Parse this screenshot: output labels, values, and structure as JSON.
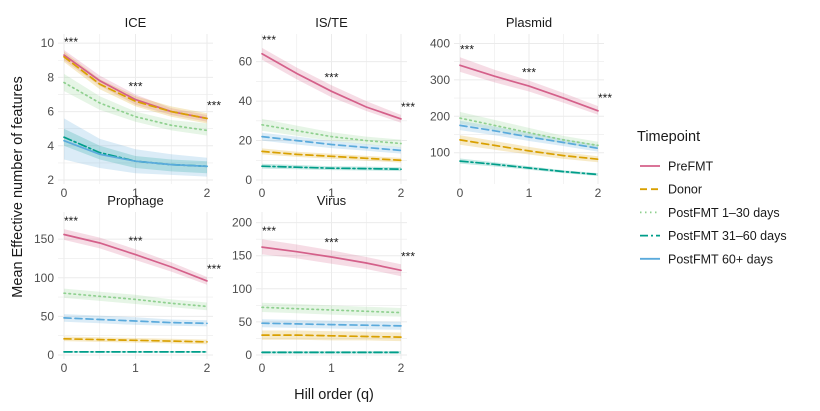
{
  "figure": {
    "ylabel": "Mean Effective number of features",
    "xlabel": "Hill order (q)"
  },
  "legend": {
    "title": "Timepoint",
    "entries": [
      "PreFMT",
      "Donor",
      "PostFMT 1–30 days",
      "PostFMT 31–60 days",
      "PostFMT 60+ days"
    ],
    "placement": "right"
  },
  "colors": {
    "PreFMT": "#d4608a",
    "Donor": "#d9a000",
    "PostFMT 1–30 days": "#8fd08f",
    "PostFMT 31–60 days": "#009e8a",
    "PostFMT 60+ days": "#5aaadc",
    "gridline": "#ebebeb",
    "axis_text": "#4d4d4d"
  },
  "chart_data": [
    {
      "type": "line",
      "title": "ICE",
      "x_ticks": [
        0,
        1,
        2
      ],
      "y_ticks": [
        2,
        4,
        6,
        8,
        10
      ],
      "ylim": [
        2,
        10.3
      ],
      "significance": [
        "***",
        "***",
        "***"
      ],
      "x": [
        0,
        0.5,
        1,
        1.5,
        2
      ],
      "series": [
        {
          "name": "PreFMT",
          "values": [
            9.3,
            7.8,
            6.7,
            6.0,
            5.6
          ],
          "lower": [
            9.0,
            7.5,
            6.4,
            5.8,
            5.4
          ],
          "upper": [
            9.6,
            8.1,
            7.0,
            6.2,
            5.8
          ],
          "dash": ""
        },
        {
          "name": "Donor",
          "values": [
            9.2,
            7.6,
            6.6,
            6.0,
            5.6
          ],
          "lower": [
            8.9,
            7.3,
            6.3,
            5.7,
            5.3
          ],
          "upper": [
            9.5,
            7.9,
            6.9,
            6.3,
            5.9
          ],
          "dash": "7,4"
        },
        {
          "name": "PostFMT 1–30 days",
          "values": [
            7.7,
            6.5,
            5.7,
            5.2,
            4.9
          ],
          "lower": [
            7.2,
            6.1,
            5.4,
            4.9,
            4.6
          ],
          "upper": [
            8.2,
            6.9,
            6.0,
            5.5,
            5.3
          ],
          "dash": "1.5,3.5"
        },
        {
          "name": "PostFMT 31–60 days",
          "values": [
            4.5,
            3.6,
            3.1,
            2.9,
            2.8
          ],
          "lower": [
            4.0,
            3.2,
            2.7,
            2.5,
            2.4
          ],
          "upper": [
            5.0,
            4.0,
            3.4,
            3.2,
            3.1
          ],
          "dash": "8,3,2,3"
        },
        {
          "name": "PostFMT 60+ days",
          "values": [
            4.3,
            3.5,
            3.1,
            2.9,
            2.8
          ],
          "lower": [
            3.2,
            2.7,
            2.4,
            2.3,
            2.2
          ],
          "upper": [
            5.6,
            4.4,
            3.8,
            3.5,
            3.3
          ],
          "dash": ""
        }
      ]
    },
    {
      "type": "line",
      "title": "IS/TE",
      "x_ticks": [
        0,
        1,
        2
      ],
      "y_ticks": [
        0,
        20,
        40,
        60
      ],
      "ylim": [
        0,
        72
      ],
      "significance": [
        "***",
        "***",
        "***"
      ],
      "x": [
        0,
        0.5,
        1,
        1.5,
        2
      ],
      "series": [
        {
          "name": "PreFMT",
          "values": [
            64,
            54,
            45,
            37,
            31
          ],
          "lower": [
            61,
            51,
            42,
            35,
            29
          ],
          "upper": [
            67,
            57,
            48,
            40,
            33
          ],
          "dash": ""
        },
        {
          "name": "Donor",
          "values": [
            14.5,
            13,
            12,
            11,
            10
          ],
          "lower": [
            13,
            11.7,
            10.7,
            9.8,
            8.8
          ],
          "upper": [
            16,
            14.3,
            13.3,
            12.2,
            11.2
          ],
          "dash": "7,4"
        },
        {
          "name": "PostFMT 1–30 days",
          "values": [
            28,
            25,
            22,
            20,
            18.5
          ],
          "lower": [
            25,
            22.4,
            19.8,
            18,
            16.5
          ],
          "upper": [
            31,
            27.6,
            24.2,
            22,
            20.5
          ],
          "dash": "1.5,3.5"
        },
        {
          "name": "PostFMT 31–60 days",
          "values": [
            7,
            6.5,
            6,
            5.8,
            5.5
          ],
          "lower": [
            5.8,
            5.4,
            5,
            4.8,
            4.5
          ],
          "upper": [
            8.2,
            7.6,
            7,
            6.8,
            6.5
          ],
          "dash": "8,3,2,3"
        },
        {
          "name": "PostFMT 60+ days",
          "values": [
            22,
            20,
            18,
            16.5,
            15
          ],
          "lower": [
            20,
            18,
            16.2,
            14.8,
            13.4
          ],
          "upper": [
            24,
            22,
            19.8,
            18.2,
            16.6
          ],
          "dash": "7,4"
        }
      ]
    },
    {
      "type": "line",
      "title": "Plasmid",
      "x_ticks": [
        0,
        1,
        2
      ],
      "y_ticks": [
        100,
        200,
        300,
        400
      ],
      "ylim": [
        25,
        415
      ],
      "significance": [
        "***",
        "***",
        "***"
      ],
      "x": [
        0,
        0.5,
        1,
        1.5,
        2
      ],
      "series": [
        {
          "name": "PreFMT",
          "values": [
            340,
            310,
            283,
            250,
            215
          ],
          "lower": [
            322,
            293,
            268,
            237,
            204
          ],
          "upper": [
            362,
            328,
            298,
            264,
            228
          ],
          "dash": ""
        },
        {
          "name": "Donor",
          "values": [
            135,
            120,
            105,
            92,
            82
          ],
          "lower": [
            122,
            108,
            95,
            83,
            74
          ],
          "upper": [
            148,
            132,
            116,
            101,
            90
          ],
          "dash": "7,4"
        },
        {
          "name": "PostFMT 1–30 days",
          "values": [
            195,
            175,
            155,
            135,
            120
          ],
          "lower": [
            180,
            162,
            143,
            125,
            111
          ],
          "upper": [
            212,
            190,
            168,
            146,
            130
          ],
          "dash": "1.5,3.5"
        },
        {
          "name": "PostFMT 31–60 days",
          "values": [
            77,
            68,
            58,
            48,
            40
          ],
          "lower": [
            70,
            62,
            53,
            44,
            36
          ],
          "upper": [
            84,
            74,
            63,
            52,
            44
          ],
          "dash": "8,3,2,3"
        },
        {
          "name": "PostFMT 60+ days",
          "values": [
            175,
            160,
            143,
            128,
            112
          ],
          "lower": [
            162,
            148,
            132,
            118,
            103
          ],
          "upper": [
            188,
            172,
            154,
            138,
            121
          ],
          "dash": "7,4"
        }
      ]
    },
    {
      "type": "line",
      "title": "Prophage",
      "x_ticks": [
        0,
        1,
        2
      ],
      "y_ticks": [
        0,
        50,
        100,
        150
      ],
      "ylim": [
        0,
        180
      ],
      "significance": [
        "***",
        "***",
        "***"
      ],
      "x": [
        0,
        0.5,
        1,
        1.5,
        2
      ],
      "series": [
        {
          "name": "PreFMT",
          "values": [
            156,
            145,
            130,
            114,
            96
          ],
          "lower": [
            149,
            138,
            123,
            108,
            91
          ],
          "upper": [
            163,
            152,
            137,
            120,
            101
          ],
          "dash": ""
        },
        {
          "name": "Donor",
          "values": [
            21,
            20,
            19,
            18,
            17
          ],
          "lower": [
            18,
            17,
            16,
            15,
            14
          ],
          "upper": [
            24,
            23,
            22,
            21,
            20
          ],
          "dash": "7,4"
        },
        {
          "name": "PostFMT 1–30 days",
          "values": [
            80,
            76,
            72,
            67,
            63
          ],
          "lower": [
            74,
            70,
            66,
            62,
            58
          ],
          "upper": [
            86,
            82,
            78,
            72,
            68
          ],
          "dash": "1.5,3.5"
        },
        {
          "name": "PostFMT 31–60 days",
          "values": [
            4,
            4,
            4,
            4,
            4
          ],
          "lower": [
            3,
            3,
            3,
            3,
            3
          ],
          "upper": [
            5,
            5,
            5,
            5,
            5
          ],
          "dash": "8,3,2,3"
        },
        {
          "name": "PostFMT 60+ days",
          "values": [
            48,
            46,
            44,
            42,
            41
          ],
          "lower": [
            43,
            41,
            39,
            38,
            37
          ],
          "upper": [
            53,
            51,
            49,
            46,
            45
          ],
          "dash": "7,4"
        }
      ]
    },
    {
      "type": "line",
      "title": "Virus",
      "x_ticks": [
        0,
        1,
        2
      ],
      "y_ticks": [
        0,
        50,
        100,
        150,
        200
      ],
      "ylim": [
        0,
        210
      ],
      "significance": [
        "***",
        "***",
        "***"
      ],
      "x": [
        0,
        0.5,
        1,
        1.5,
        2
      ],
      "series": [
        {
          "name": "PreFMT",
          "values": [
            163,
            156,
            148,
            139,
            128
          ],
          "lower": [
            152,
            146,
            138,
            130,
            119
          ],
          "upper": [
            175,
            167,
            158,
            148,
            137
          ],
          "dash": ""
        },
        {
          "name": "Donor",
          "values": [
            30,
            30,
            29,
            28,
            27
          ],
          "lower": [
            23,
            23,
            22,
            22,
            21
          ],
          "upper": [
            37,
            37,
            36,
            35,
            34
          ],
          "dash": "7,4"
        },
        {
          "name": "PostFMT 1–30 days",
          "values": [
            72,
            70,
            68,
            66,
            64
          ],
          "lower": [
            65,
            63,
            61,
            59,
            58
          ],
          "upper": [
            79,
            77,
            75,
            73,
            71
          ],
          "dash": "1.5,3.5"
        },
        {
          "name": "PostFMT 31–60 days",
          "values": [
            4,
            4,
            4,
            4,
            4
          ],
          "lower": [
            2,
            2,
            2,
            2,
            2
          ],
          "upper": [
            6,
            6,
            6,
            6,
            6
          ],
          "dash": "8,3,2,3"
        },
        {
          "name": "PostFMT 60+ days",
          "values": [
            48,
            47,
            46,
            45,
            44
          ],
          "lower": [
            42,
            41,
            40,
            39,
            38
          ],
          "upper": [
            54,
            53,
            52,
            51,
            50
          ],
          "dash": "7,4"
        }
      ]
    }
  ]
}
